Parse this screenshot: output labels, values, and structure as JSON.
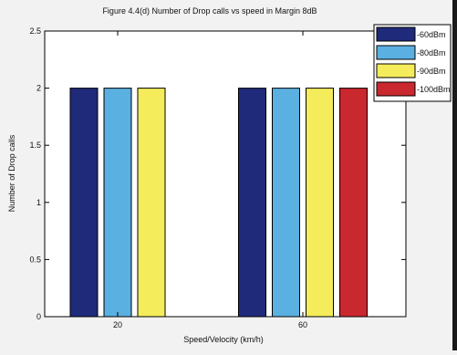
{
  "chart_data": {
    "type": "bar",
    "title": "Figure 4.4(d) Number of Drop calls vs speed in Margin 8dB",
    "xlabel": "Speed/Velocity (km/h)",
    "ylabel": "Number of Drop calls",
    "categories": [
      "20",
      "60"
    ],
    "ylim": [
      0,
      2.5
    ],
    "yticks": [
      "0",
      "0.5",
      "1",
      "1.5",
      "2",
      "2.5"
    ],
    "grid": false,
    "legend_position": "top-right",
    "series": [
      {
        "name": "-60dBm",
        "color": "#1f2a7a",
        "values": [
          2,
          2
        ]
      },
      {
        "name": "-80dBm",
        "color": "#5ab0e0",
        "values": [
          2,
          2
        ]
      },
      {
        "name": "-90dBm",
        "color": "#f5ec5c",
        "values": [
          2,
          2
        ]
      },
      {
        "name": "-100dBm",
        "color": "#c8282e",
        "values": [
          null,
          2
        ]
      }
    ]
  }
}
